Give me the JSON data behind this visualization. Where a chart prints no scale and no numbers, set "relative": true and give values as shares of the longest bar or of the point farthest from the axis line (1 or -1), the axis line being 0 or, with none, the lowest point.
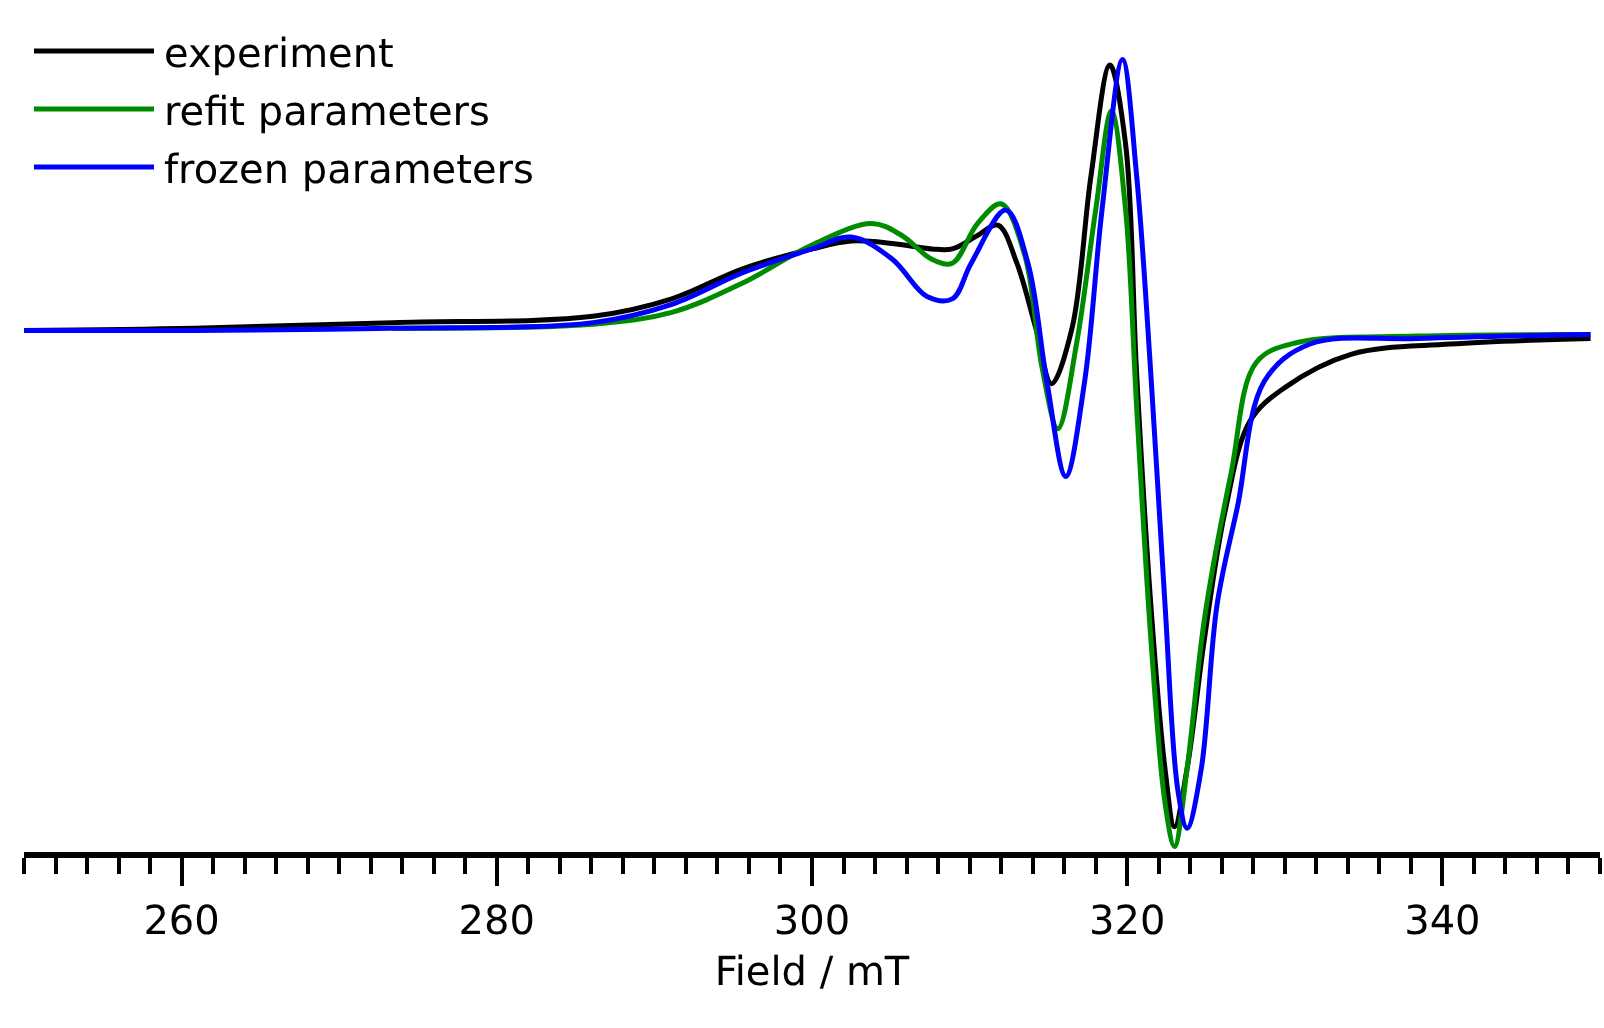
{
  "chart_data": {
    "type": "line",
    "relative": true,
    "xlabel": "Field / mT",
    "xlim": [
      250,
      350
    ],
    "xticks": [
      {
        "value": 250,
        "label": null
      },
      {
        "value": 252,
        "label": null
      },
      {
        "value": 254,
        "label": null
      },
      {
        "value": 256,
        "label": null
      },
      {
        "value": 258,
        "label": null
      },
      260,
      {
        "value": 262,
        "label": null
      },
      {
        "value": 264,
        "label": null
      },
      {
        "value": 266,
        "label": null
      },
      {
        "value": 268,
        "label": null
      },
      {
        "value": 270,
        "label": null
      },
      {
        "value": 272,
        "label": null
      },
      {
        "value": 274,
        "label": null
      },
      {
        "value": 276,
        "label": null
      },
      {
        "value": 278,
        "label": null
      },
      280,
      {
        "value": 282,
        "label": null
      },
      {
        "value": 284,
        "label": null
      },
      {
        "value": 286,
        "label": null
      },
      {
        "value": 288,
        "label": null
      },
      {
        "value": 290,
        "label": null
      },
      {
        "value": 292,
        "label": null
      },
      {
        "value": 294,
        "label": null
      },
      {
        "value": 296,
        "label": null
      },
      {
        "value": 298,
        "label": null
      },
      300,
      {
        "value": 302,
        "label": null
      },
      {
        "value": 304,
        "label": null
      },
      {
        "value": 306,
        "label": null
      },
      {
        "value": 308,
        "label": null
      },
      {
        "value": 310,
        "label": null
      },
      {
        "value": 312,
        "label": null
      },
      {
        "value": 314,
        "label": null
      },
      {
        "value": 316,
        "label": null
      },
      {
        "value": 318,
        "label": null
      },
      320,
      {
        "value": 322,
        "label": null
      },
      {
        "value": 324,
        "label": null
      },
      {
        "value": 326,
        "label": null
      },
      {
        "value": 328,
        "label": null
      },
      {
        "value": 330,
        "label": null
      },
      {
        "value": 332,
        "label": null
      },
      {
        "value": 334,
        "label": null
      },
      {
        "value": 336,
        "label": null
      },
      {
        "value": 338,
        "label": null
      },
      340,
      {
        "value": 342,
        "label": null
      },
      {
        "value": 344,
        "label": null
      },
      {
        "value": 346,
        "label": null
      },
      {
        "value": 348,
        "label": null
      },
      {
        "value": 350,
        "label": null
      }
    ],
    "tick_labels": "x",
    "legend": "top left",
    "marker": "none",
    "line_style": "solid",
    "series": [
      {
        "name": "experiment",
        "color": "#000000",
        "x": [
          250,
          260.8,
          273.4,
          286.1,
          291.1,
          295.6,
          300.0,
          302.5,
          305.1,
          307.6,
          308.9,
          310.5,
          311.8,
          313.0,
          314.2,
          315.2,
          316.5,
          317.7,
          318.9,
          319.9,
          320.6,
          321.5,
          322.4,
          323.0,
          323.8,
          324.9,
          326.2,
          327.8,
          330.0,
          334.2,
          340.5,
          349.4
        ],
        "values": [
          0.658,
          0.661,
          0.668,
          0.676,
          0.698,
          0.736,
          0.761,
          0.771,
          0.768,
          0.761,
          0.761,
          0.778,
          0.791,
          0.743,
          0.661,
          0.591,
          0.661,
          0.853,
          0.993,
          0.893,
          0.603,
          0.312,
          0.105,
          0.032,
          0.105,
          0.269,
          0.429,
          0.544,
          0.586,
          0.628,
          0.641,
          0.648
        ]
      },
      {
        "name": "refit parameters",
        "color": "#008c00",
        "x": [
          273.4,
          286.1,
          291.1,
          295.6,
          300.0,
          303.8,
          305.7,
          307.6,
          308.9,
          310.5,
          312.0,
          313.5,
          314.6,
          315.6,
          316.8,
          318.0,
          319.0,
          319.9,
          320.6,
          321.5,
          322.4,
          323.0,
          323.8,
          324.9,
          326.6,
          328.2,
          330.8,
          338.4,
          349.4
        ],
        "values": [
          0.661,
          0.666,
          0.681,
          0.718,
          0.766,
          0.793,
          0.778,
          0.748,
          0.743,
          0.793,
          0.818,
          0.753,
          0.611,
          0.534,
          0.643,
          0.81,
          0.935,
          0.81,
          0.561,
          0.269,
          0.062,
          0.007,
          0.105,
          0.294,
          0.479,
          0.618,
          0.643,
          0.651,
          0.653
        ]
      },
      {
        "name": "frozen parameters",
        "color": "#0000ff",
        "x": [
          250,
          260.8,
          273.4,
          286.1,
          291.1,
          295.6,
          300.0,
          302.5,
          305.1,
          307.3,
          308.9,
          310.1,
          312.3,
          313.7,
          314.9,
          316.1,
          317.3,
          318.4,
          319.7,
          320.6,
          321.5,
          322.4,
          323.2,
          323.8,
          324.7,
          325.7,
          327.0,
          328.7,
          331.6,
          338.4,
          349.4
        ],
        "values": [
          0.658,
          0.658,
          0.661,
          0.668,
          0.691,
          0.731,
          0.761,
          0.776,
          0.748,
          0.701,
          0.698,
          0.743,
          0.81,
          0.743,
          0.594,
          0.474,
          0.594,
          0.81,
          1.0,
          0.853,
          0.603,
          0.312,
          0.08,
          0.03,
          0.105,
          0.312,
          0.436,
          0.594,
          0.641,
          0.648,
          0.653
        ]
      }
    ]
  }
}
